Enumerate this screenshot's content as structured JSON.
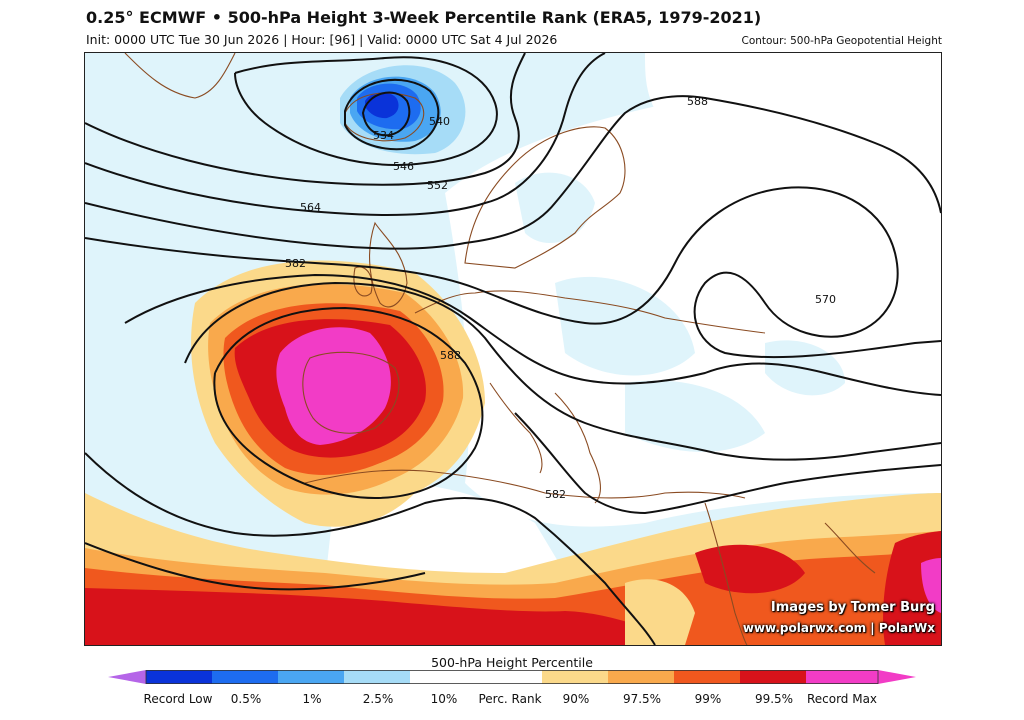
{
  "header": {
    "title": "0.25° ECMWF • 500-hPa Height 3-Week Percentile Rank (ERA5, 1979-2021)",
    "subtitle": "Init: 0000 UTC Tue 30 Jun 2026 | Hour: [96] | Valid: 0000 UTC Sat 4 Jul 2026",
    "contour_note": "Contour: 500-hPa Geopotential Height"
  },
  "map": {
    "contour_labels": [
      "534",
      "540",
      "546",
      "552",
      "564",
      "582",
      "588",
      "588",
      "570",
      "582"
    ],
    "credit_line1": "Images by Tomer Burg",
    "credit_line2": "www.polarwx.com | PolarWx"
  },
  "legend": {
    "title": "500-hPa Height Percentile",
    "labels": [
      "Record Low",
      "0.5%",
      "1%",
      "2.5%",
      "10%",
      "Perc. Rank",
      "90%",
      "97.5%",
      "99%",
      "99.5%",
      "Record Max"
    ],
    "colors": {
      "record_low": "#b565e8",
      "p0_5": "#0a33d9",
      "p1": "#1d6cf0",
      "p2_5": "#4aa6f2",
      "p10": "#a6dcf7",
      "neutral": "#ffffff",
      "p90": "#fbd98a",
      "p97_5": "#f9a94c",
      "p99": "#f0581e",
      "p99_5": "#d8121a",
      "record_max": "#f23cc6"
    }
  }
}
